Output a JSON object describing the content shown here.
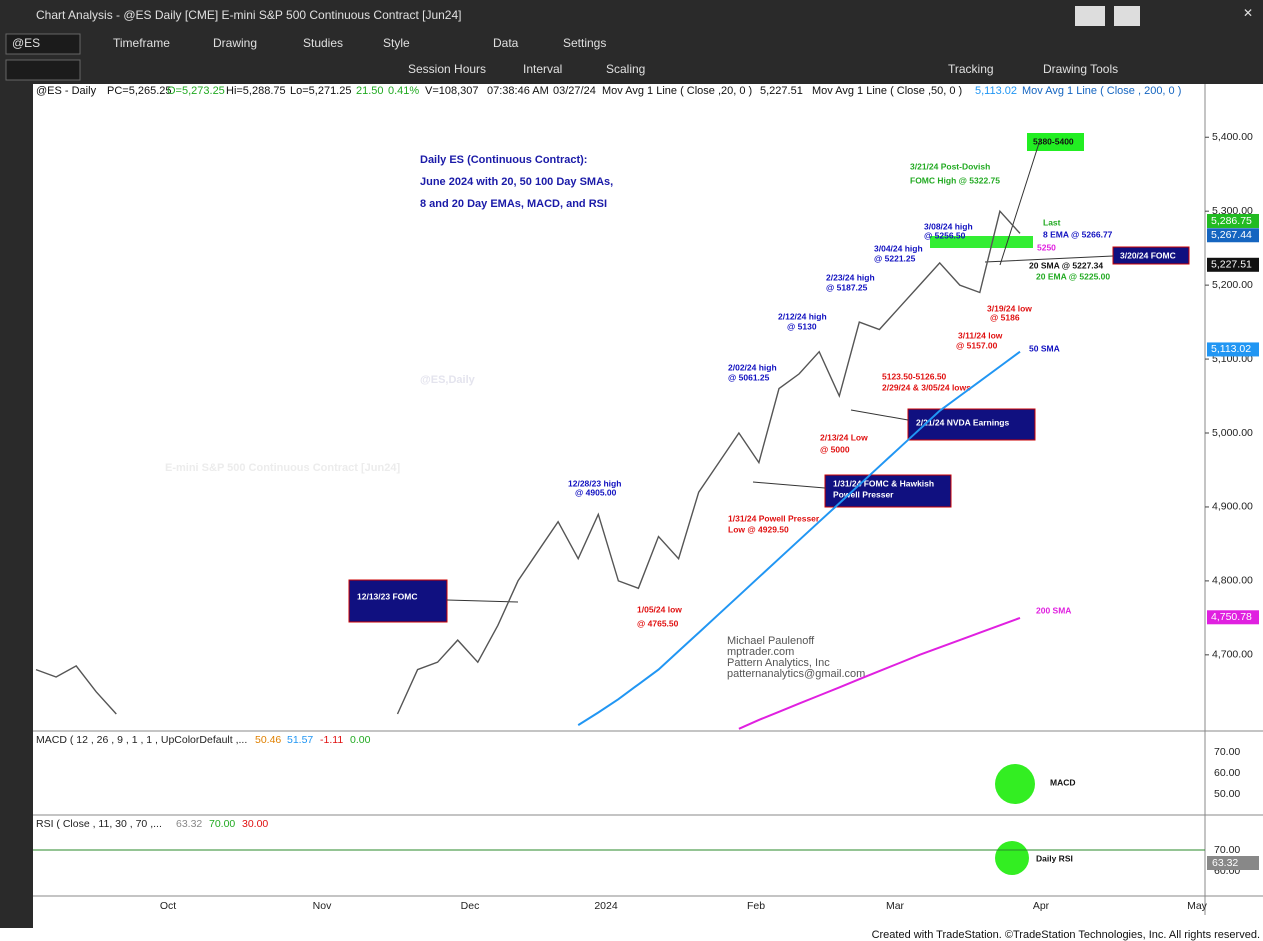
{
  "window": {
    "title": "Chart Analysis - @ES Daily [CME] E-mini S&P 500 Continuous Contract [Jun24]"
  },
  "toolbar": {
    "symbol": "@ES",
    "row1": [
      "Timeframe",
      "Drawing",
      "Studies",
      "Style",
      "Data",
      "Settings"
    ],
    "row2": [
      "Session Hours",
      "Interval",
      "Scaling",
      "Tracking",
      "Drawing Tools"
    ]
  },
  "header": {
    "name": "@ES - Daily",
    "pc": "PC=5,265.25",
    "open": "O=5,273.25",
    "high": "Hi=5,288.75",
    "low": "Lo=5,271.25",
    "change": "21.50",
    "pct": "0.41%",
    "volume": "V=108,307",
    "time": "07:38:46 AM",
    "date": "03/27/24",
    "ma20": "Mov Avg 1 Line ( Close ,20, 0 )",
    "ma20v": "5,227.51",
    "ma50": "Mov Avg 1 Line ( Close ,50, 0 )",
    "ma50v": "5,113.02",
    "ma200": "Mov Avg 1 Line ( Close , 200, 0 )"
  },
  "watermark": {
    "symbol": "@ES,Daily",
    "name": "E-mini S&P 500 Continuous Contract [Jun24]"
  },
  "title": [
    "Daily ES (Continuous Contract):",
    "June 2024 with 20, 50 100 Day SMAs,",
    "8 and 20 Day EMAs, MACD, and RSI"
  ],
  "annotations": [
    "5380-5400",
    "3/21/24 Post-Dovish",
    "FOMC High @ 5322.75",
    "Last",
    "8 EMA @ 5266.77",
    "5250",
    "3/20/24 FOMC",
    "20 SMA @ 5227.34",
    "20 EMA @ 5225.00",
    "3/19/24 low",
    "@ 5186",
    "3/11/24 low",
    "@ 5157.00",
    "3/08/24 high",
    "@ 5256.50",
    "3/04/24 high",
    "@ 5221.25",
    "2/23/24 high",
    "@ 5187.25",
    "2/12/24 high",
    "@ 5130",
    "2/02/24 high",
    "@ 5061.25",
    "5123.50-5126.50",
    "2/29/24 & 3/05/24 lows",
    "2/21/24 NVDA Earnings",
    "2/13/24 Low",
    "@ 5000",
    "1/31/24 FOMC & Hawkish",
    "Powell Presser",
    "1/31/24 Powell Presser",
    "Low @ 4929.50",
    "12/28/23 high",
    "@ 4905.00",
    "12/13/23 FOMC",
    "1/05/24 low",
    "@ 4765.50",
    "50 SMA",
    "200 SMA"
  ],
  "credits": [
    "Michael Paulenoff",
    "mptrader.com",
    "Pattern Analytics, Inc",
    "patternanalytics@gmail.com"
  ],
  "price": {
    "ylim": [
      4597,
      5472
    ],
    "yticks": [
      {
        "value": 5400,
        "label": "5,400.00"
      },
      {
        "value": 5300,
        "label": "5,300.00"
      },
      {
        "value": 5200,
        "label": "5,200.00"
      },
      {
        "value": 5100,
        "label": "5,100.00"
      },
      {
        "value": 5000,
        "label": "5,000.00"
      },
      {
        "value": 4900,
        "label": "4,900.00"
      },
      {
        "value": 4800,
        "label": "4,800.00"
      },
      {
        "value": 4700,
        "label": "4,700.00"
      }
    ],
    "flags": [
      {
        "value": 5286.75,
        "label": "5,286.75",
        "color": "#22bb22"
      },
      {
        "value": 5267.44,
        "label": "5,267.44",
        "color": "#1565c0"
      },
      {
        "value": 5227.51,
        "label": "5,227.51",
        "color": "#111111"
      },
      {
        "value": 5113.02,
        "label": "5,113.02",
        "color": "#2196f3"
      },
      {
        "value": 4750.78,
        "label": "4,750.78",
        "color": "#e020e0"
      }
    ],
    "series": [
      {
        "name": "Close",
        "color": "#555555",
        "values": [
          4680,
          4670,
          4685,
          4650,
          4620,
          null,
          null,
          null,
          null,
          null,
          null,
          null,
          null,
          null,
          null,
          null,
          null,
          null,
          4620,
          4680,
          4690,
          4720,
          4690,
          4740,
          4800,
          4840,
          4880,
          4830,
          4890,
          4800,
          4790,
          4860,
          4830,
          4920,
          4960,
          5000,
          4960,
          5060,
          5080,
          5110,
          5050,
          5150,
          5140,
          5170,
          5200,
          5230,
          5200,
          5190,
          5300,
          5270
        ]
      },
      {
        "name": "50 SMA",
        "color": "#2196f3",
        "values": [
          null,
          null,
          null,
          null,
          null,
          null,
          null,
          null,
          null,
          null,
          null,
          null,
          null,
          null,
          null,
          null,
          null,
          null,
          null,
          null,
          null,
          null,
          null,
          null,
          null,
          null,
          null,
          4605,
          4622,
          4640,
          4660,
          4680,
          4705,
          4730,
          4755,
          4780,
          4805,
          4830,
          4855,
          4880,
          4905,
          4930,
          4955,
          4980,
          5005,
          5030,
          5050,
          5070,
          5090,
          5110
        ]
      },
      {
        "name": "200 SMA",
        "color": "#e020e0",
        "values": [
          null,
          null,
          null,
          null,
          null,
          null,
          null,
          null,
          null,
          null,
          null,
          null,
          null,
          null,
          null,
          null,
          null,
          null,
          null,
          null,
          null,
          null,
          null,
          null,
          null,
          null,
          null,
          null,
          null,
          null,
          null,
          null,
          null,
          null,
          null,
          4600,
          4612,
          4623,
          4634,
          4645,
          4656,
          4667,
          4678,
          4689,
          4700,
          4710,
          4720,
          4730,
          4740,
          4750
        ]
      }
    ]
  },
  "dates": [
    "Oct",
    "Nov",
    "Dec",
    "2024",
    "Feb",
    "Mar",
    "Apr",
    "May"
  ],
  "macd": {
    "header": "MACD ( 12 , 26 , 9 , 1 , 1 , UpColorDefault ,...",
    "v1": "50.46",
    "v2": "51.57",
    "v3": "-1.11",
    "v4": "0.00",
    "ticks": [
      "70.00",
      "60.00",
      "50.00"
    ],
    "label": "MACD"
  },
  "rsi": {
    "header": "RSI ( Close , 11, 30 , 70 ,...",
    "v1": "63.32",
    "v2": "70.00",
    "v3": "30.00",
    "ticks": [
      "70.00",
      "60.00"
    ],
    "flag": "63.32",
    "label": "Daily RSI"
  },
  "footer": "Created with TradeStation. ©TradeStation Technologies, Inc. All rights reserved."
}
